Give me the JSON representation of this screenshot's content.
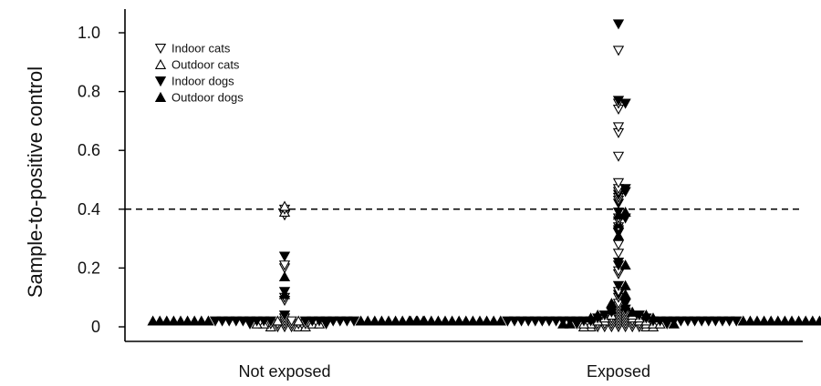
{
  "chart_data": {
    "type": "scatter",
    "title": "",
    "xlabel": "",
    "ylabel": "Sample-to-positive control",
    "categories": [
      "Not exposed",
      "Exposed"
    ],
    "ylim": [
      -0.05,
      1.07
    ],
    "yticks": [
      0,
      0.2,
      0.4,
      0.6,
      0.8,
      1.0
    ],
    "ytick_labels": [
      "0",
      "0.2",
      "0.4",
      "0.6",
      "0.8",
      "1.0"
    ],
    "cutoff_line": 0.4,
    "legend": {
      "position": "top-left"
    },
    "series": [
      {
        "name": "Indoor cats",
        "marker": "open-down-triangle",
        "points": [
          {
            "category": "Not exposed",
            "values": [
              0.4,
              0.38,
              0.21,
              0.2,
              0.1,
              0.09,
              0.03,
              0.02,
              0.02,
              0.01,
              0.01,
              0.01,
              0.01,
              0.01,
              0.01,
              0,
              0,
              0
            ]
          },
          {
            "category": "Exposed",
            "values": [
              0.94,
              0.76,
              0.74,
              0.68,
              0.66,
              0.58,
              0.49,
              0.47,
              0.46,
              0.44,
              0.43,
              0.37,
              0.36,
              0.34,
              0.28,
              0.25,
              0.19,
              0.18,
              0.12,
              0.1,
              0.08,
              0.07,
              0.06,
              0.05,
              0.05,
              0.04,
              0.04,
              0.03,
              0.03,
              0.03,
              0.02,
              0.02,
              0.02,
              0.02,
              0.01,
              0.01,
              0.01,
              0.01,
              0.01,
              0.01,
              0.01,
              0,
              0,
              0,
              0,
              0,
              0,
              0
            ]
          }
        ]
      },
      {
        "name": "Outdoor cats",
        "marker": "open-up-triangle",
        "points": [
          {
            "category": "Not exposed",
            "values": [
              0.41,
              0.39,
              0.02,
              0.02,
              0.01,
              0.01,
              0.01,
              0.01,
              0,
              0,
              0
            ]
          },
          {
            "category": "Exposed",
            "values": [
              0.04,
              0.04,
              0.03,
              0.03,
              0.03,
              0.02,
              0.02,
              0.02,
              0.02,
              0.01,
              0.01,
              0.01,
              0.01,
              0.01,
              0,
              0,
              0,
              0
            ]
          }
        ]
      },
      {
        "name": "Indoor dogs",
        "marker": "filled-down-triangle",
        "points": [
          {
            "category": "Not exposed",
            "values": [
              0.24,
              0.12,
              0.04,
              0.02,
              0.02,
              0.02,
              0.02,
              0.02,
              0.02,
              0.02,
              0.02,
              0.02,
              0.02,
              0.02,
              0.02,
              0.02,
              0.02,
              0.02,
              0.02,
              0.02,
              0.01,
              0.01
            ]
          },
          {
            "category": "Exposed",
            "values": [
              1.03,
              0.77,
              0.76,
              0.47,
              0.46,
              0.45,
              0.42,
              0.39,
              0.37,
              0.33,
              0.32,
              0.22,
              0.21,
              0.14,
              0.11,
              0.08,
              0.06,
              0.05,
              0.04,
              0.04,
              0.03,
              0.03,
              0.02,
              0.02,
              0.02,
              0.02,
              0.02,
              0.02,
              0.02,
              0.02,
              0.02,
              0.02,
              0.02,
              0.02,
              0.02,
              0.02,
              0.02,
              0.02,
              0.02,
              0.02,
              0.02,
              0.02,
              0.02,
              0.02,
              0.02,
              0.02,
              0.02,
              0.02,
              0.01,
              0.01
            ]
          }
        ]
      },
      {
        "name": "Outdoor dogs",
        "marker": "filled-up-triangle",
        "points": [
          {
            "category": "Not exposed",
            "values": [
              0.17,
              0.11,
              0.02,
              0.02,
              0.02,
              0.02,
              0.02,
              0.02,
              0.02,
              0.02,
              0.02,
              0.02,
              0.02,
              0.02,
              0.02,
              0.02,
              0.02,
              0.02,
              0.02,
              0.02,
              0.02
            ]
          },
          {
            "category": "Exposed",
            "values": [
              0.39,
              0.38,
              0.35,
              0.31,
              0.21,
              0.14,
              0.11,
              0.08,
              0.07,
              0.06,
              0.05,
              0.04,
              0.04,
              0.03,
              0.03,
              0.02,
              0.02,
              0.02,
              0.02,
              0.02,
              0.02,
              0.02,
              0.02,
              0.02,
              0.02,
              0.02,
              0.02,
              0.02,
              0.02,
              0.02,
              0.02,
              0.02,
              0.02,
              0.02,
              0.02,
              0.02,
              0.02,
              0.02,
              0.02,
              0.02,
              0.02,
              0.02,
              0.01,
              0.01,
              0.01
            ]
          }
        ]
      }
    ]
  }
}
